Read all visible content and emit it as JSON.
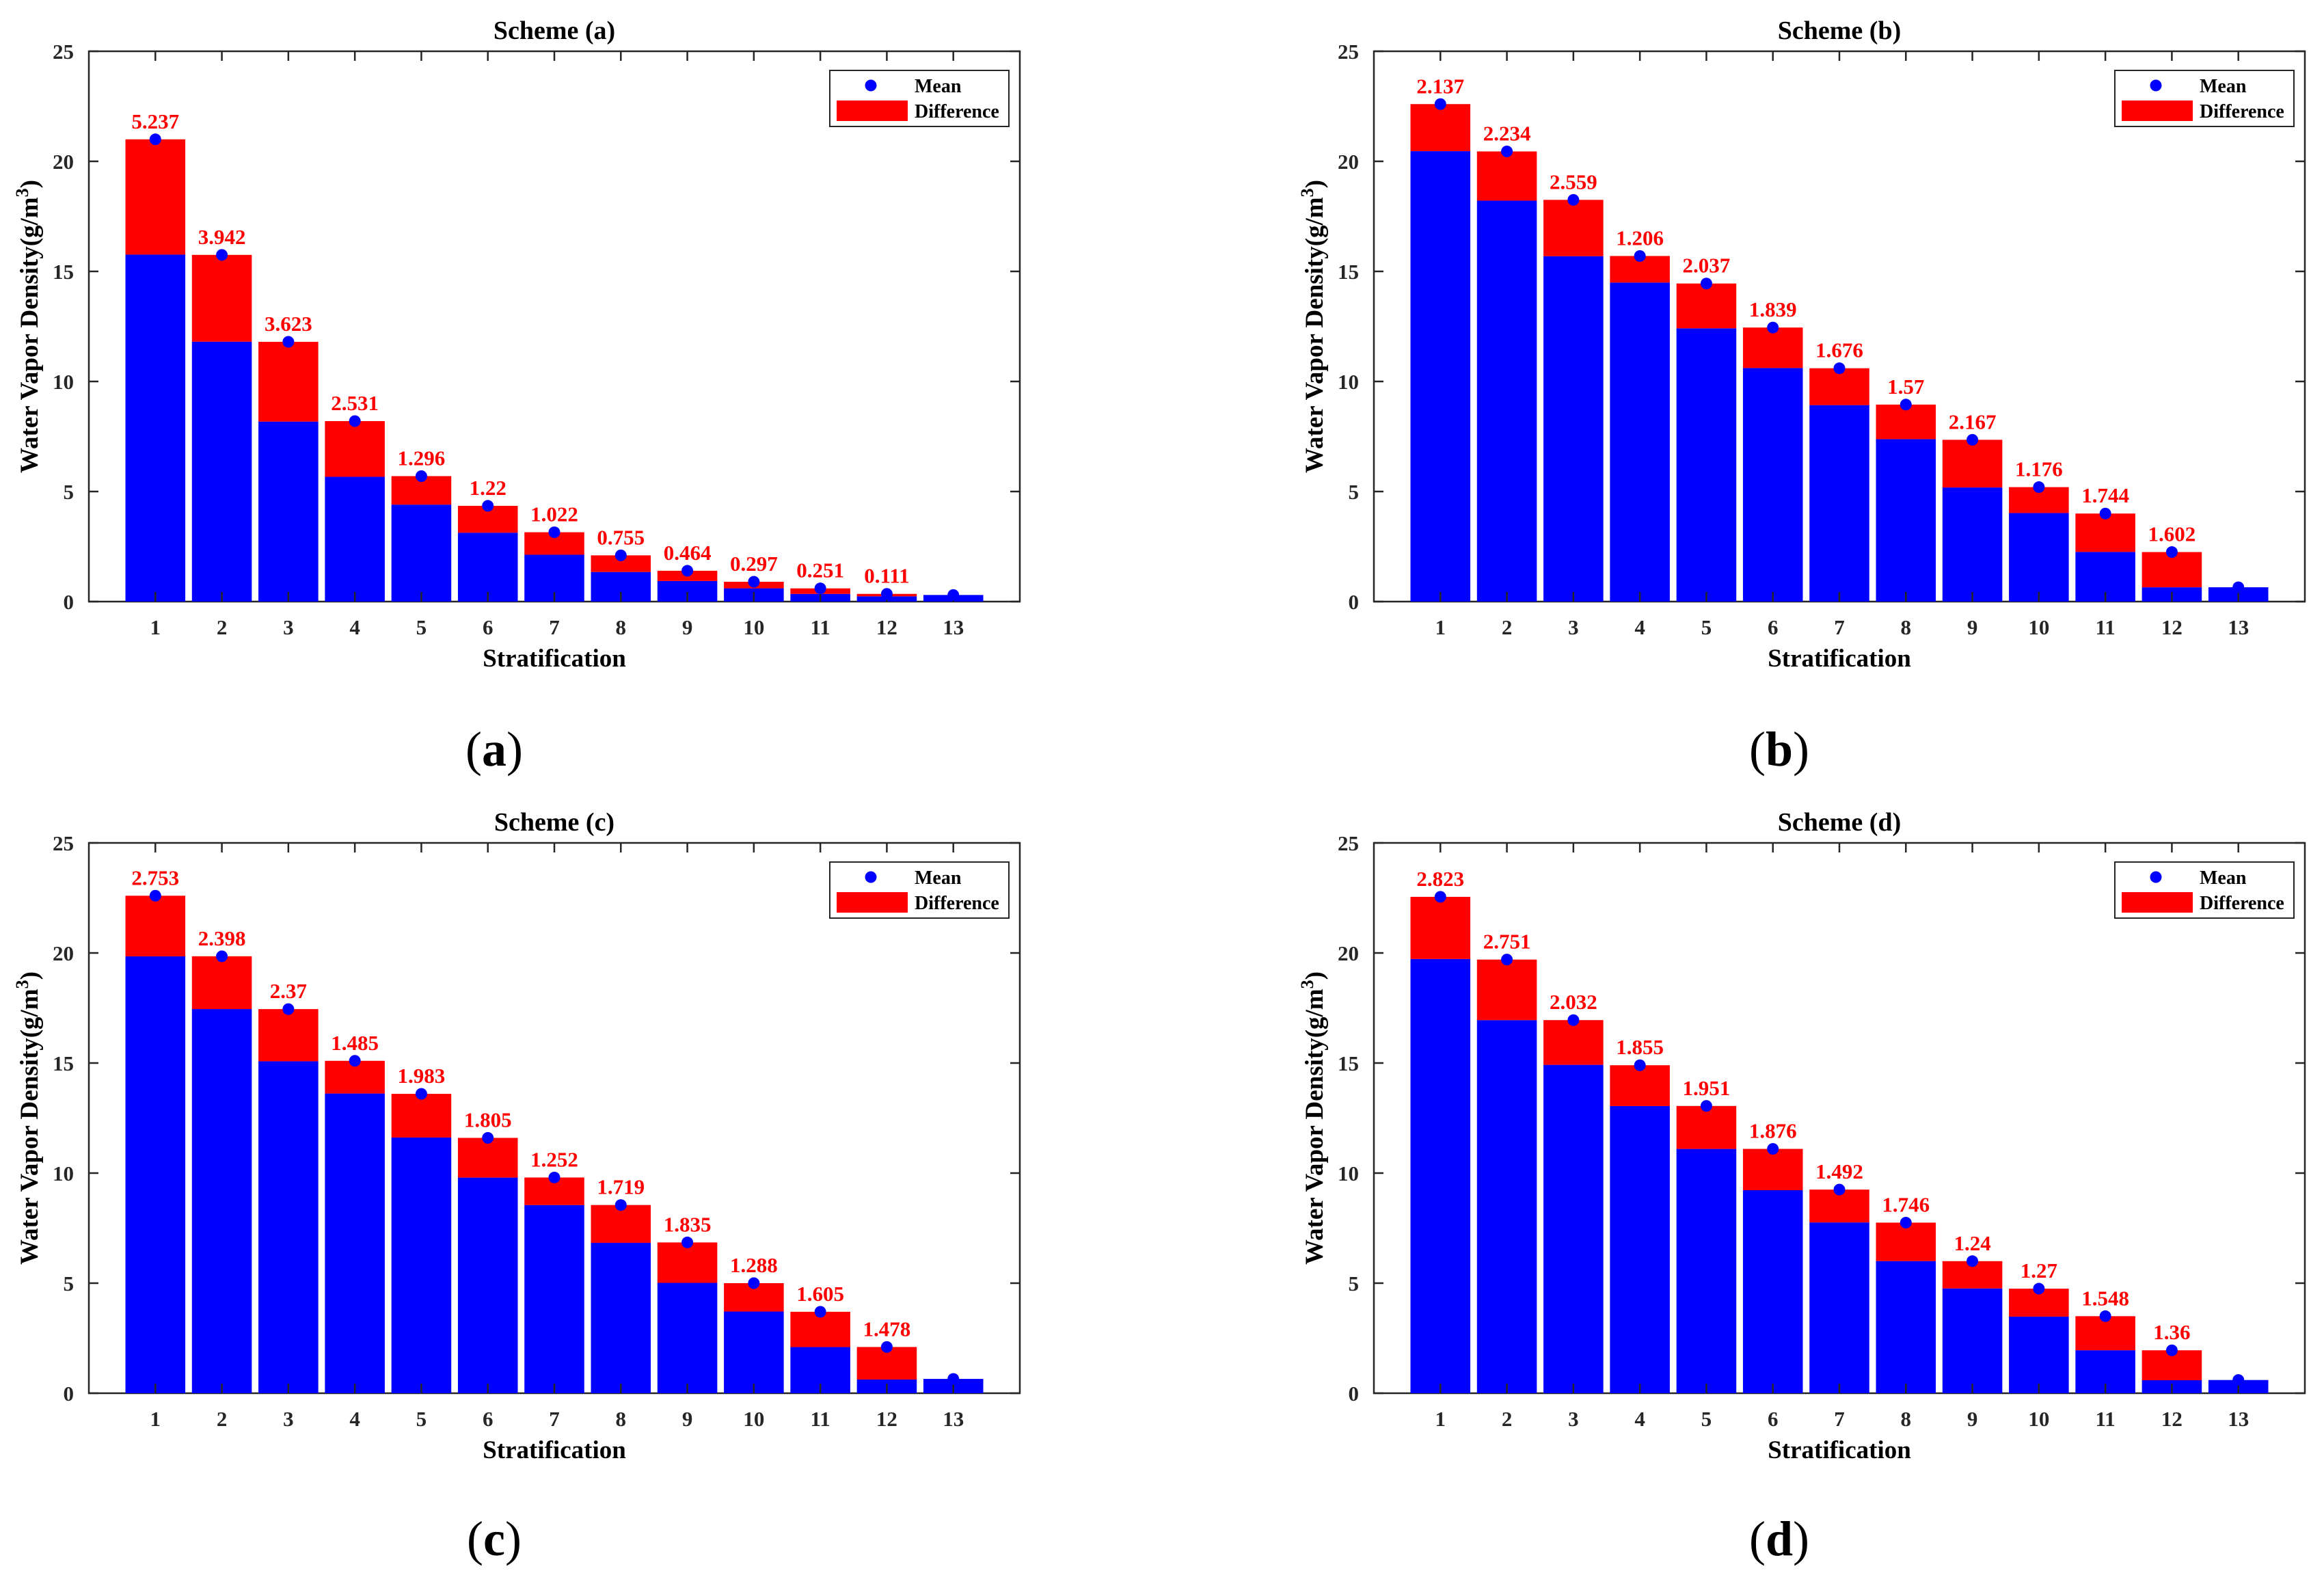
{
  "colors": {
    "mean_bar": "#0000ff",
    "difference_bar": "#ff0000",
    "mean_marker": "#0000ff",
    "label_text": "#ff0000",
    "axis": "#262626"
  },
  "captions": [
    "a",
    "b",
    "c",
    "d"
  ],
  "chart_data": [
    {
      "type": "bar",
      "title": "Scheme (a)",
      "xlabel": "Stratification",
      "ylabel": "Water Vapor Density(g/m",
      "ylabel_sup": "3",
      "ylabel_close": ")",
      "ylim": [
        0,
        25
      ],
      "yticks": [
        0,
        5,
        10,
        15,
        20,
        25
      ],
      "categories": [
        "1",
        "2",
        "3",
        "4",
        "5",
        "6",
        "7",
        "8",
        "9",
        "10",
        "11",
        "12",
        "13"
      ],
      "legend": [
        "Mean",
        "Difference"
      ],
      "series": [
        {
          "name": "Mean",
          "values": [
            21.0,
            15.75,
            11.8,
            8.2,
            5.7,
            4.35,
            3.15,
            2.1,
            1.4,
            0.9,
            0.6,
            0.35,
            0.3
          ]
        },
        {
          "name": "Difference",
          "values": [
            5.237,
            3.942,
            3.623,
            2.531,
            1.296,
            1.22,
            1.022,
            0.755,
            0.464,
            0.297,
            0.251,
            0.111,
            null
          ]
        }
      ],
      "labels": [
        "5.237",
        "3.942",
        "3.623",
        "2.531",
        "1.296",
        "1.22",
        "1.022",
        "0.755",
        "0.464",
        "0.297",
        "0.251",
        "0.111",
        ""
      ]
    },
    {
      "type": "bar",
      "title": "Scheme (b)",
      "xlabel": "Stratification",
      "ylabel": "Water Vapor Density(g/m",
      "ylabel_sup": "3",
      "ylabel_close": ")",
      "ylim": [
        0,
        25
      ],
      "yticks": [
        0,
        5,
        10,
        15,
        20,
        25
      ],
      "categories": [
        "1",
        "2",
        "3",
        "4",
        "5",
        "6",
        "7",
        "8",
        "9",
        "10",
        "11",
        "12",
        "13"
      ],
      "legend": [
        "Mean",
        "Difference"
      ],
      "series": [
        {
          "name": "Mean",
          "values": [
            22.6,
            20.45,
            18.25,
            15.7,
            14.45,
            12.45,
            10.6,
            8.95,
            7.35,
            5.2,
            4.0,
            2.25,
            0.65
          ]
        },
        {
          "name": "Difference",
          "values": [
            2.137,
            2.234,
            2.559,
            1.206,
            2.037,
            1.839,
            1.676,
            1.57,
            2.167,
            1.176,
            1.744,
            1.602,
            null
          ]
        }
      ],
      "labels": [
        "2.137",
        "2.234",
        "2.559",
        "1.206",
        "2.037",
        "1.839",
        "1.676",
        "1.57",
        "2.167",
        "1.176",
        "1.744",
        "1.602",
        ""
      ]
    },
    {
      "type": "bar",
      "title": "Scheme (c)",
      "xlabel": "Stratification",
      "ylabel": "Water Vapor Density(g/m",
      "ylabel_sup": "3",
      "ylabel_close": ")",
      "ylim": [
        0,
        25
      ],
      "yticks": [
        0,
        5,
        10,
        15,
        20,
        25
      ],
      "categories": [
        "1",
        "2",
        "3",
        "4",
        "5",
        "6",
        "7",
        "8",
        "9",
        "10",
        "11",
        "12",
        "13"
      ],
      "legend": [
        "Mean",
        "Difference"
      ],
      "series": [
        {
          "name": "Mean",
          "values": [
            22.6,
            19.85,
            17.45,
            15.1,
            13.6,
            11.6,
            9.8,
            8.55,
            6.85,
            5.0,
            3.7,
            2.1,
            0.65
          ]
        },
        {
          "name": "Difference",
          "values": [
            2.753,
            2.398,
            2.37,
            1.485,
            1.983,
            1.805,
            1.252,
            1.719,
            1.835,
            1.288,
            1.605,
            1.478,
            null
          ]
        }
      ],
      "labels": [
        "2.753",
        "2.398",
        "2.37",
        "1.485",
        "1.983",
        "1.805",
        "1.252",
        "1.719",
        "1.835",
        "1.288",
        "1.605",
        "1.478",
        ""
      ]
    },
    {
      "type": "bar",
      "title": "Scheme (d)",
      "xlabel": "Stratification",
      "ylabel": "Water Vapor Density(g/m",
      "ylabel_sup": "3",
      "ylabel_close": ")",
      "ylim": [
        0,
        25
      ],
      "yticks": [
        0,
        5,
        10,
        15,
        20,
        25
      ],
      "categories": [
        "1",
        "2",
        "3",
        "4",
        "5",
        "6",
        "7",
        "8",
        "9",
        "10",
        "11",
        "12",
        "13"
      ],
      "legend": [
        "Mean",
        "Difference"
      ],
      "series": [
        {
          "name": "Mean",
          "values": [
            22.55,
            19.7,
            16.95,
            14.9,
            13.05,
            11.1,
            9.25,
            7.75,
            6.0,
            4.75,
            3.5,
            1.95,
            0.6
          ]
        },
        {
          "name": "Difference",
          "values": [
            2.823,
            2.751,
            2.032,
            1.855,
            1.951,
            1.876,
            1.492,
            1.746,
            1.24,
            1.27,
            1.548,
            1.36,
            null
          ]
        }
      ],
      "labels": [
        "2.823",
        "2.751",
        "2.032",
        "1.855",
        "1.951",
        "1.876",
        "1.492",
        "1.746",
        "1.24",
        "1.27",
        "1.548",
        "1.36",
        ""
      ]
    }
  ]
}
